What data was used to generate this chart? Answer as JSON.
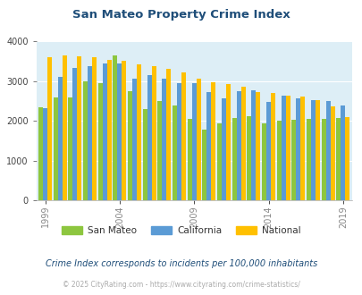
{
  "title": "San Mateo Property Crime Index",
  "years": [
    1999,
    2000,
    2001,
    2002,
    2003,
    2004,
    2005,
    2006,
    2007,
    2008,
    2009,
    2010,
    2011,
    2012,
    2013,
    2014,
    2015,
    2016,
    2017,
    2018,
    2019
  ],
  "san_mateo": [
    2350,
    2600,
    2600,
    3000,
    2950,
    3650,
    2750,
    2300,
    2500,
    2380,
    2050,
    1780,
    1940,
    2070,
    2110,
    1940,
    2000,
    2040,
    2050,
    2050,
    2070
  ],
  "california": [
    2320,
    3110,
    3330,
    3380,
    3440,
    3440,
    3060,
    3150,
    3060,
    2960,
    2960,
    2730,
    2560,
    2750,
    2760,
    2470,
    2640,
    2560,
    2520,
    2500,
    2380
  ],
  "national": [
    3610,
    3650,
    3620,
    3590,
    3530,
    3510,
    3420,
    3380,
    3300,
    3230,
    3060,
    2970,
    2920,
    2870,
    2730,
    2700,
    2630,
    2610,
    2530,
    2360,
    2100
  ],
  "bar_colors": {
    "san_mateo": "#8dc63f",
    "california": "#5b9bd5",
    "national": "#ffc000"
  },
  "background_color": "#ddeef6",
  "ylim": [
    0,
    4000
  ],
  "yticks": [
    0,
    1000,
    2000,
    3000,
    4000
  ],
  "xtick_years": [
    1999,
    2004,
    2009,
    2014,
    2019
  ],
  "legend_labels": [
    "San Mateo",
    "California",
    "National"
  ],
  "subtitle": "Crime Index corresponds to incidents per 100,000 inhabitants",
  "copyright": "© 2025 CityRating.com - https://www.cityrating.com/crime-statistics/",
  "title_color": "#1f4e79",
  "subtitle_color": "#1f4e79",
  "copyright_color": "#aaaaaa",
  "xtick_color": "#888888",
  "ytick_color": "#444444"
}
